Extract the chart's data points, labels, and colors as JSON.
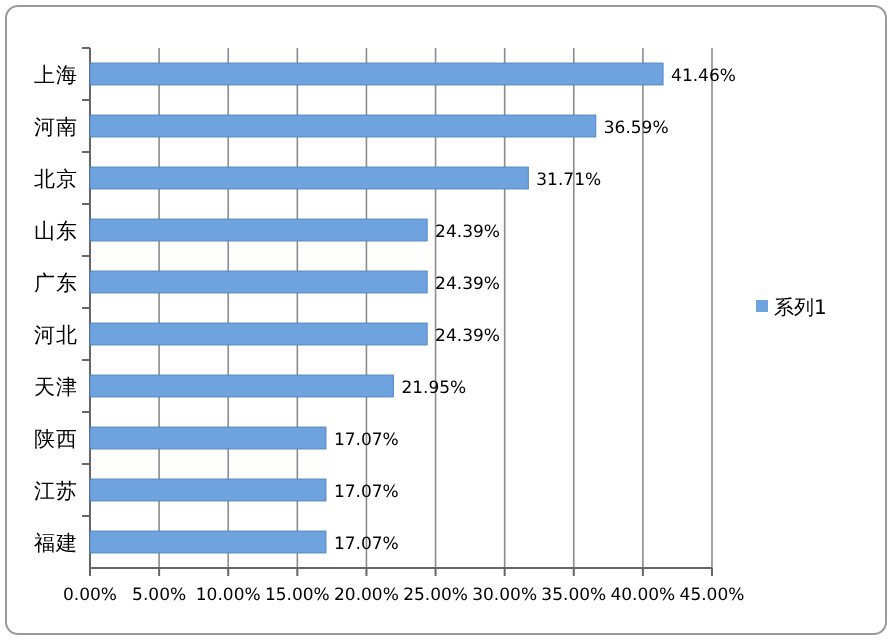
{
  "chart_data": {
    "type": "bar",
    "orientation": "horizontal",
    "categories": [
      "上海",
      "河南",
      "北京",
      "山东",
      "广东",
      "河北",
      "天津",
      "陕西",
      "江苏",
      "福建"
    ],
    "series": [
      {
        "name": "系列1",
        "color": "#6fa3e0",
        "values": [
          41.46,
          36.59,
          31.71,
          24.39,
          24.39,
          24.39,
          21.95,
          17.07,
          17.07,
          17.07
        ],
        "value_labels": [
          "41.46%",
          "36.59%",
          "31.71%",
          "24.39%",
          "24.39%",
          "24.39%",
          "21.95%",
          "17.07%",
          "17.07%",
          "17.07%"
        ]
      }
    ],
    "xlim": [
      0,
      45
    ],
    "xticks": [
      {
        "value": 0,
        "label": "0.00%"
      },
      {
        "value": 5,
        "label": "5.00%"
      },
      {
        "value": 10,
        "label": "10.00%"
      },
      {
        "value": 15,
        "label": "15.00%"
      },
      {
        "value": 20,
        "label": "20.00%"
      },
      {
        "value": 25,
        "label": "25.00%"
      },
      {
        "value": 30,
        "label": "30.00%"
      },
      {
        "value": 35,
        "label": "35.00%"
      },
      {
        "value": 40,
        "label": "40.00%"
      },
      {
        "value": 45,
        "label": "45.00%"
      }
    ],
    "grid": "x",
    "legend": "right"
  }
}
